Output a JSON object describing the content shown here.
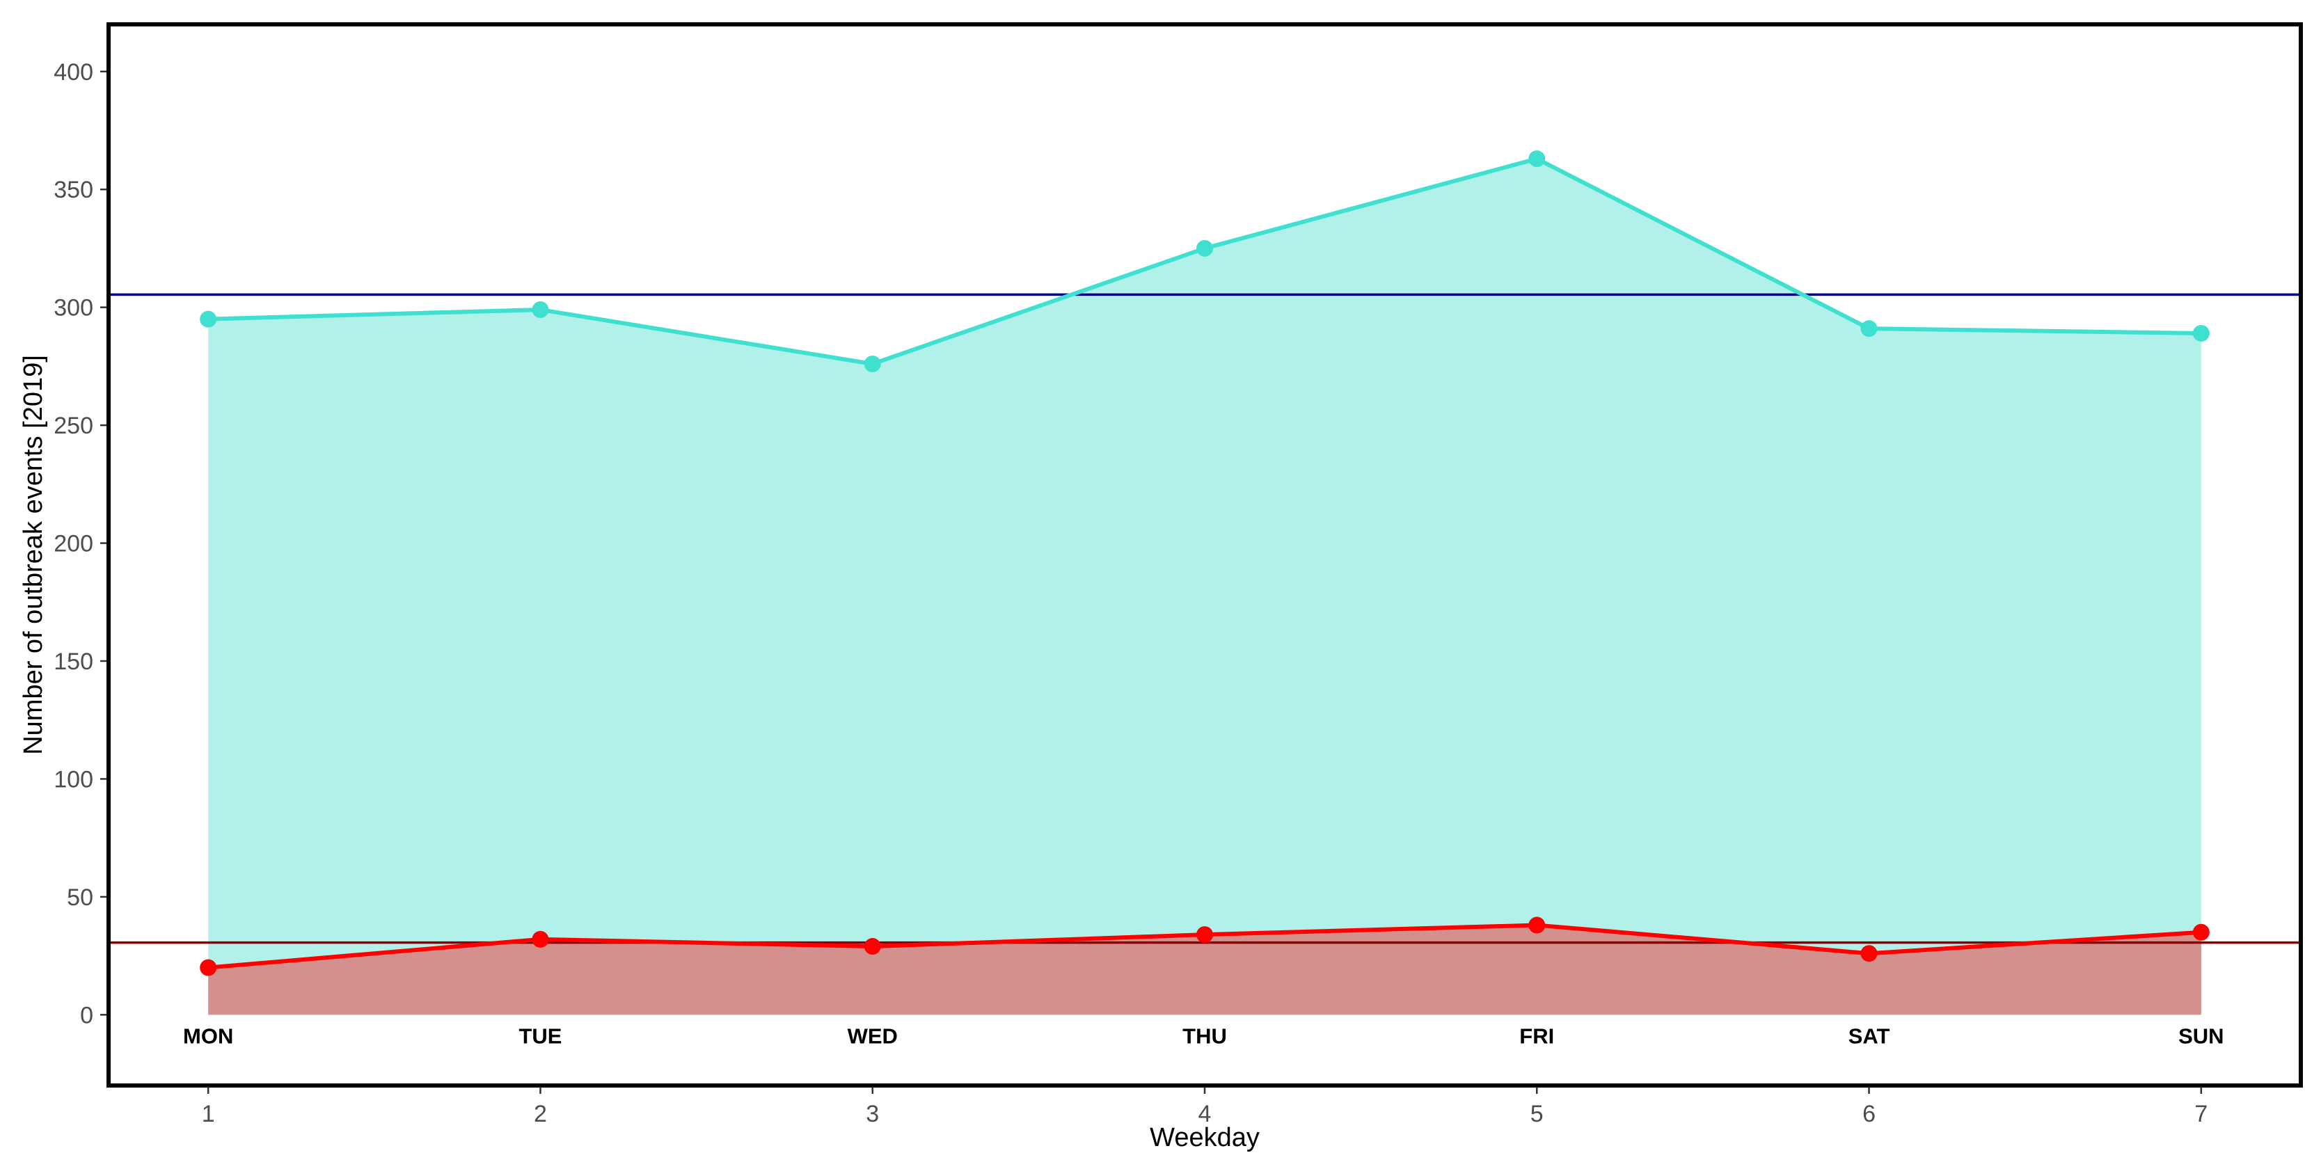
{
  "chart_data": {
    "type": "area",
    "xlabel": "Weekday",
    "ylabel": "Number of outbreak events [2019]",
    "x": [
      1,
      2,
      3,
      4,
      5,
      6,
      7
    ],
    "x_ticks": [
      "1",
      "2",
      "3",
      "4",
      "5",
      "6",
      "7"
    ],
    "y_ticks": [
      "0",
      "50",
      "100",
      "150",
      "200",
      "250",
      "300",
      "350",
      "400"
    ],
    "xlim": [
      0.7,
      7.3
    ],
    "ylim": [
      -30,
      420
    ],
    "grid": false,
    "legend": "none",
    "day_labels": [
      "MON",
      "TUE",
      "WED",
      "THU",
      "FRI",
      "SAT",
      "SUN"
    ],
    "series": [
      {
        "values": [
          295,
          299,
          276,
          325,
          363,
          291,
          289
        ],
        "line_color": "#40E0D0",
        "fill_color": "#B2F1EA"
      },
      {
        "values": [
          20,
          32,
          29,
          34,
          38,
          26,
          35
        ],
        "line_color": "#FF0000",
        "fill_color": "#D3908C"
      }
    ],
    "reference_lines": [
      {
        "y": 305.4,
        "color": "#00008B"
      },
      {
        "y": 30.6,
        "color": "#8B0000"
      }
    ]
  }
}
